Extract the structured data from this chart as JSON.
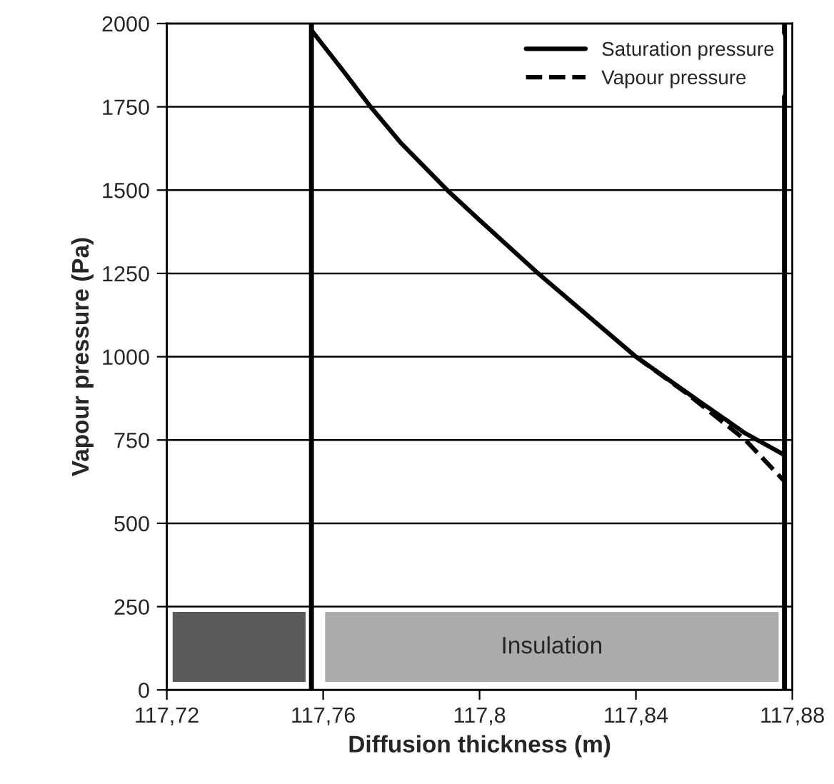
{
  "chart_data": {
    "type": "line",
    "xlabel": "Diffusion thickness (m)",
    "ylabel": "Vapour pressure (Pa)",
    "xlim": [
      117.72,
      117.88
    ],
    "ylim": [
      0,
      2000
    ],
    "xticks": [
      {
        "value": 117.72,
        "label": "117,72"
      },
      {
        "value": 117.76,
        "label": "117,76"
      },
      {
        "value": 117.8,
        "label": "117,8"
      },
      {
        "value": 117.84,
        "label": "117,84"
      },
      {
        "value": 117.88,
        "label": "117,88"
      }
    ],
    "yticks": [
      0,
      250,
      500,
      750,
      1000,
      1250,
      1500,
      1750,
      2000
    ],
    "grid": "y",
    "legend": "top right",
    "series": [
      {
        "name": "Saturation pressure",
        "color": "#000000",
        "line_style": "solid",
        "x": [
          117.757,
          117.765,
          117.772,
          117.78,
          117.792,
          117.8,
          117.815,
          117.828,
          117.84,
          117.856,
          117.868,
          117.878
        ],
        "values": [
          1980,
          1860,
          1752,
          1640,
          1497,
          1410,
          1250,
          1120,
          1000,
          868,
          770,
          705
        ]
      },
      {
        "name": "Vapour pressure",
        "color": "#000000",
        "line_style": "dashed",
        "x": [
          117.84,
          117.853,
          117.868,
          117.878
        ],
        "values": [
          1000,
          890,
          750,
          626
        ]
      }
    ],
    "ref_lines": [
      {
        "axis": "x",
        "value": 117.757,
        "color": "#000000"
      },
      {
        "axis": "x",
        "value": 117.878,
        "color": "#000000"
      }
    ],
    "bands": [
      {
        "axis": "x",
        "from": 117.7215,
        "to": 117.7555,
        "color": "#5a5a5a"
      },
      {
        "axis": "x",
        "from": 117.7605,
        "to": 117.8765,
        "label": "Insulation",
        "color": "#ababab"
      }
    ]
  }
}
